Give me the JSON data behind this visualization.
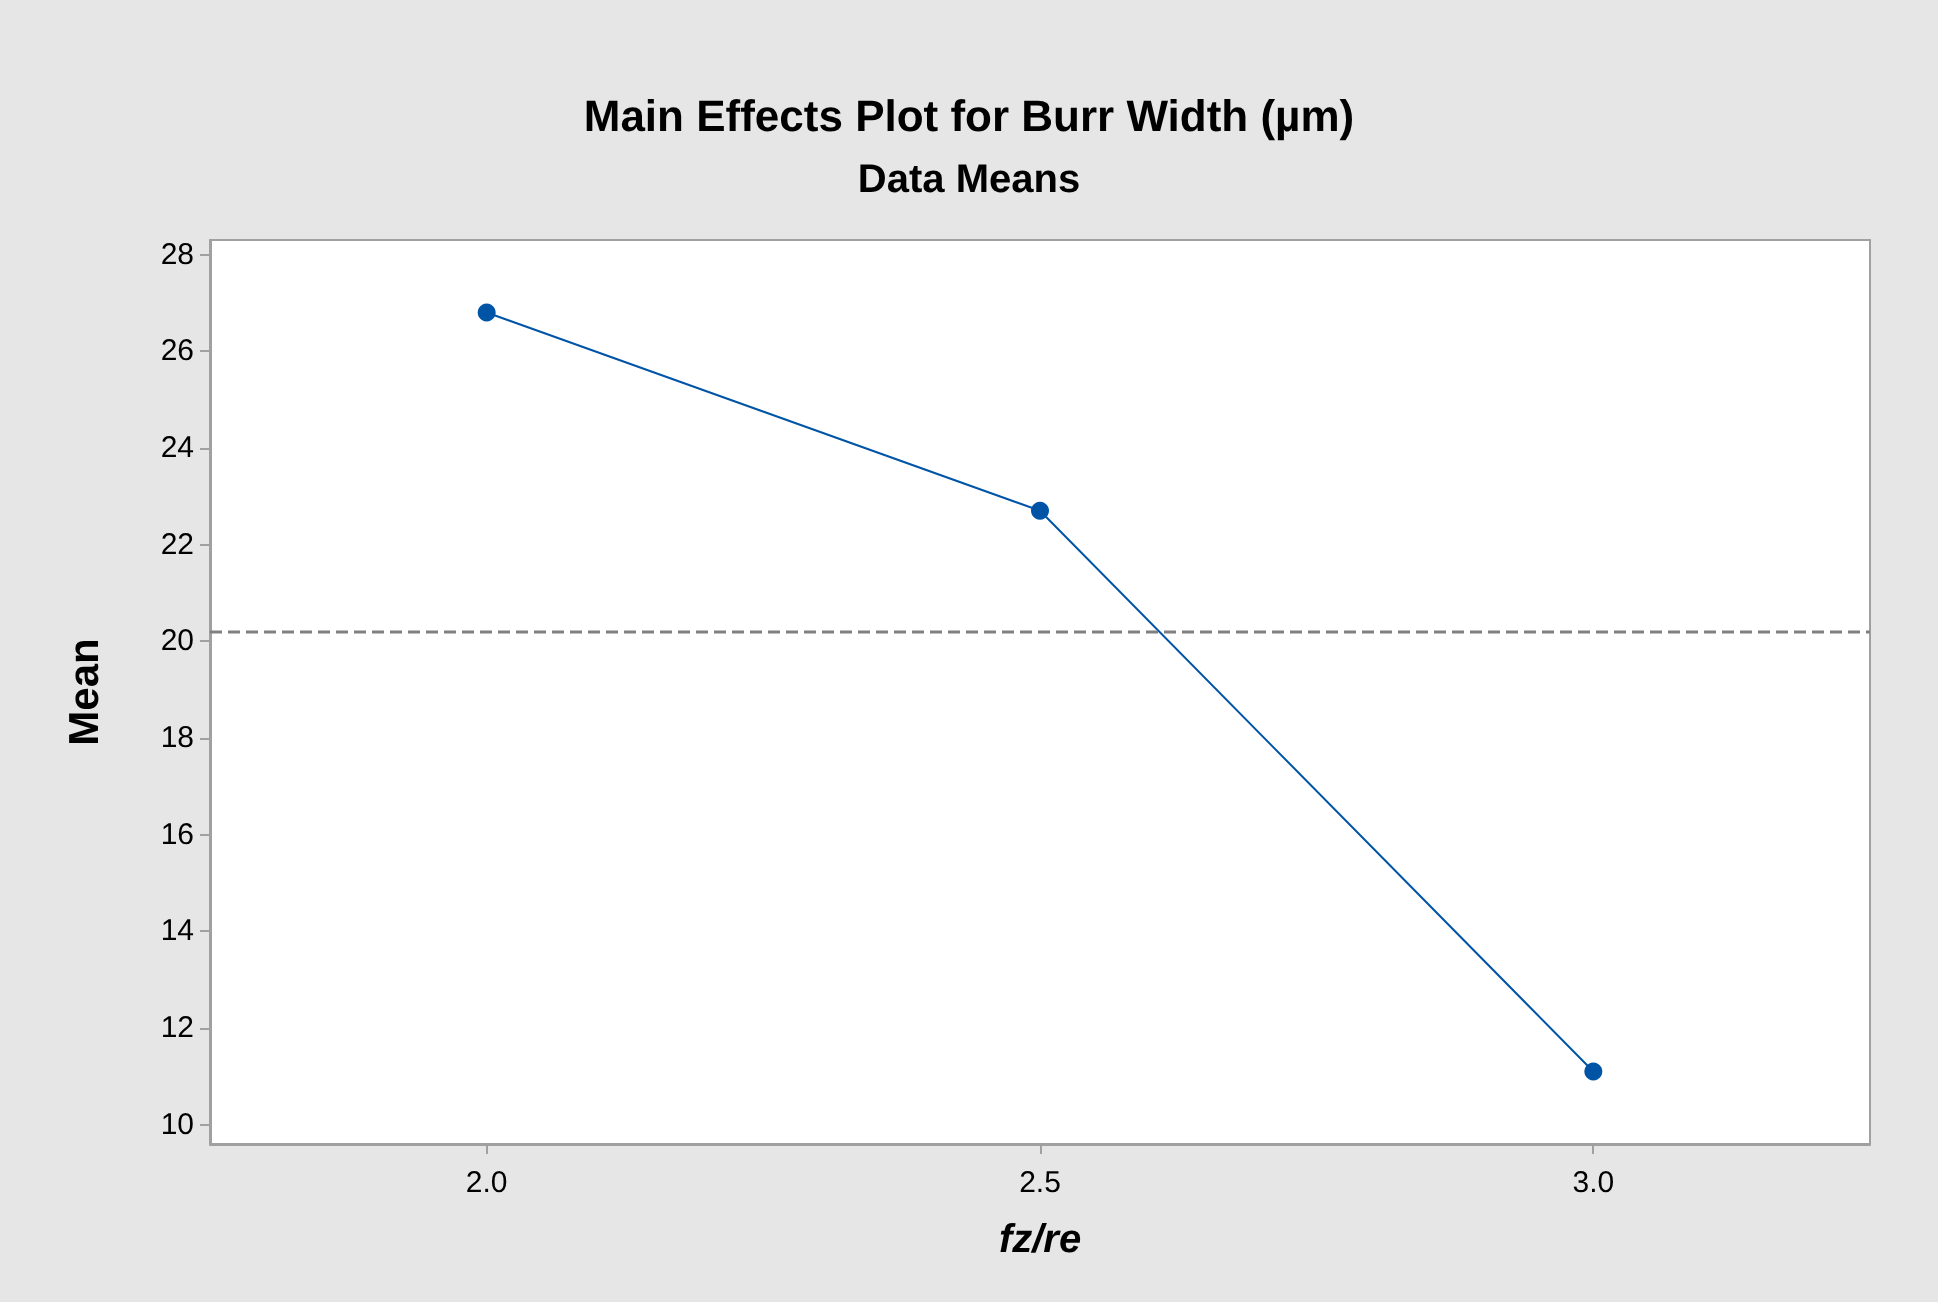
{
  "chart_data": {
    "type": "line",
    "title": "Main Effects Plot for Burr Width (µm)",
    "subtitle": "Data Means",
    "xlabel": "fz/re",
    "ylabel": "Mean",
    "categories": [
      "2.0",
      "2.5",
      "3.0"
    ],
    "series": [
      {
        "color": "#0054a6",
        "values": [
          26.8,
          22.7,
          11.1
        ]
      }
    ],
    "ylim": [
      9.6,
      28.3
    ],
    "yticks": [
      10,
      12,
      14,
      16,
      18,
      20,
      22,
      24,
      26,
      28
    ],
    "ref_lines": [
      {
        "axis": "y",
        "value": 20.2,
        "color": "#808080",
        "line_style": "dashed"
      }
    ],
    "marker": "circle",
    "line_style": "solid",
    "grid": false
  }
}
